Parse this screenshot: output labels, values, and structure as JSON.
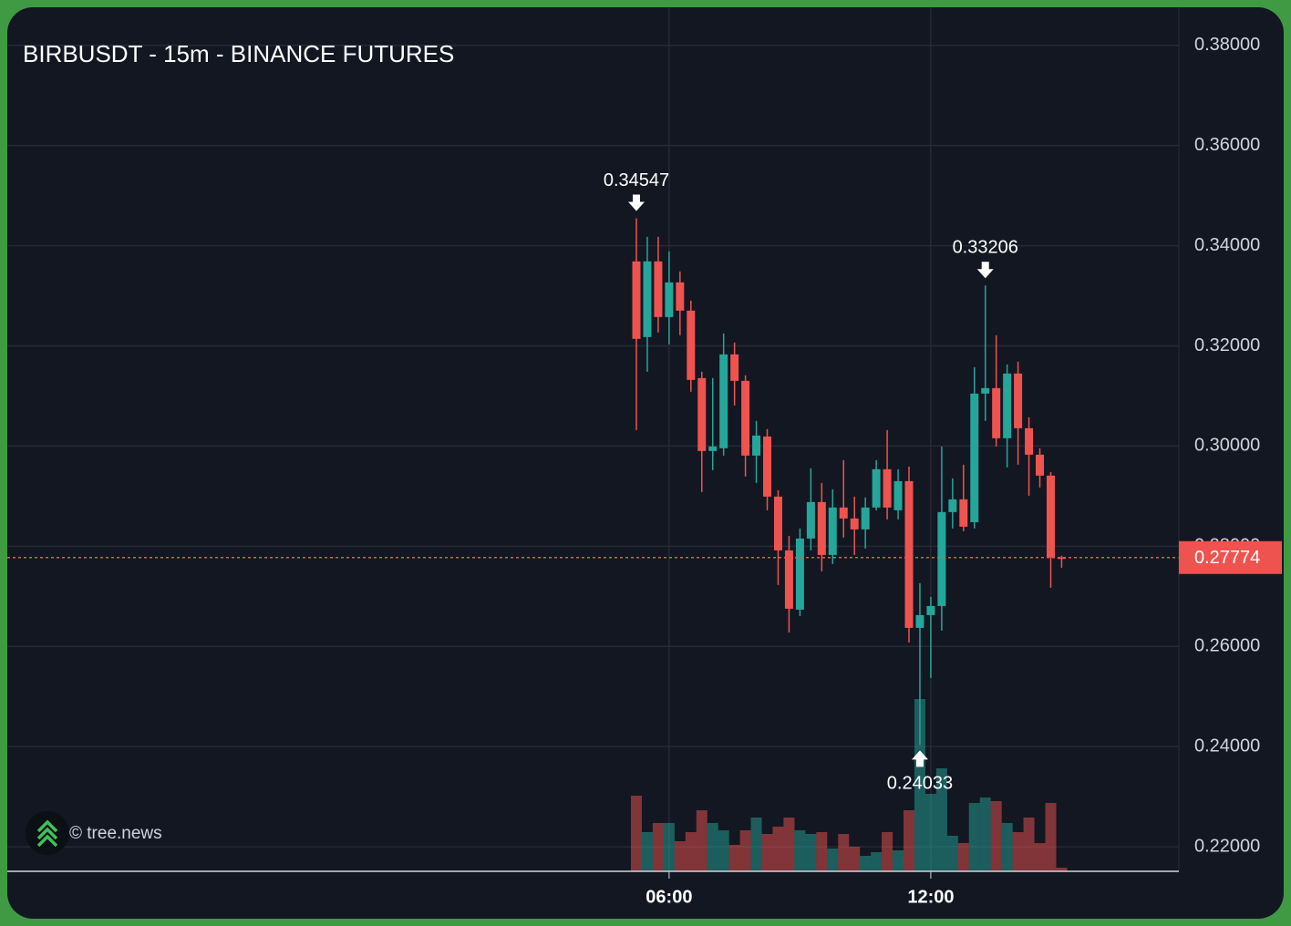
{
  "chart_data": {
    "type": "candlestick",
    "title": "BIRBUSDT - 15m - BINANCE FUTURES",
    "watermark": "© tree.news",
    "up_color": "#26a69a",
    "down_color": "#ef5350",
    "grid": true,
    "x": [
      "05:15",
      "05:30",
      "05:45",
      "06:00",
      "06:15",
      "06:30",
      "06:45",
      "07:00",
      "07:15",
      "07:30",
      "07:45",
      "08:00",
      "08:15",
      "08:30",
      "08:45",
      "09:00",
      "09:15",
      "09:30",
      "09:45",
      "10:00",
      "10:15",
      "10:30",
      "10:45",
      "11:00",
      "11:15",
      "11:30",
      "11:45",
      "12:00",
      "12:15",
      "12:30",
      "12:45",
      "13:00",
      "13:15",
      "13:30",
      "13:45",
      "14:00",
      "14:15",
      "14:30",
      "14:45",
      "15:00"
    ],
    "open": [
      0.33687,
      0.32176,
      0.33687,
      0.32576,
      0.33268,
      0.32704,
      0.31357,
      0.29901,
      0.29956,
      0.3183,
      0.31302,
      0.2981,
      0.30192,
      0.28991,
      0.27917,
      0.26734,
      0.28154,
      0.28882,
      0.27826,
      0.28773,
      0.28554,
      0.28336,
      0.28773,
      0.29537,
      0.28718,
      0.293,
      0.2637,
      0.26625,
      0.26807,
      0.28682,
      0.28936,
      0.28481,
      0.31048,
      0.31157,
      0.30156,
      0.31448,
      0.30356,
      0.29828,
      0.2941,
      0.27774
    ],
    "high": [
      0.34547,
      0.34178,
      0.34178,
      0.33887,
      0.33486,
      0.32904,
      0.31484,
      0.31357,
      0.32249,
      0.32067,
      0.31412,
      0.30502,
      0.30338,
      0.29118,
      0.28208,
      0.28354,
      0.29555,
      0.29264,
      0.29137,
      0.29719,
      0.28991,
      0.28973,
      0.29719,
      0.3032,
      0.29537,
      0.29592,
      0.27262,
      0.26989,
      0.29992,
      0.29355,
      0.29628,
      0.31575,
      0.33206,
      0.32212,
      0.3163,
      0.31685,
      0.30574,
      0.29956,
      0.29482,
      0.27808
    ],
    "low": [
      0.3032,
      0.31484,
      0.32267,
      0.3203,
      0.32212,
      0.31084,
      0.29082,
      0.29519,
      0.2981,
      0.30811,
      0.29391,
      0.29264,
      0.28718,
      0.27226,
      0.26279,
      0.26607,
      0.27917,
      0.27499,
      0.27644,
      0.28172,
      0.27826,
      0.27954,
      0.28718,
      0.28536,
      0.28536,
      0.26079,
      0.24033,
      0.25369,
      0.26316,
      0.28354,
      0.28299,
      0.28354,
      0.30502,
      0.29992,
      0.29573,
      0.29628,
      0.29009,
      0.29173,
      0.27171,
      0.27571
    ],
    "close": [
      0.3214,
      0.33687,
      0.32576,
      0.33268,
      0.32704,
      0.31321,
      0.29901,
      0.29992,
      0.3183,
      0.31302,
      0.2981,
      0.3021,
      0.28991,
      0.27917,
      0.26752,
      0.28154,
      0.28882,
      0.27826,
      0.28773,
      0.28554,
      0.28336,
      0.28773,
      0.29537,
      0.28773,
      0.293,
      0.2637,
      0.26625,
      0.26807,
      0.28682,
      0.28936,
      0.2839,
      0.31048,
      0.31157,
      0.30156,
      0.31448,
      0.30356,
      0.29828,
      0.2941,
      0.27774,
      0.27774
    ],
    "volume": [
      83,
      43,
      53,
      53,
      33,
      43,
      67,
      53,
      45,
      29,
      45,
      59,
      41,
      49,
      59,
      45,
      41,
      43,
      25,
      41,
      27,
      17,
      21,
      43,
      23,
      67,
      189,
      85,
      113,
      39,
      31,
      75,
      81,
      77,
      53,
      43,
      59,
      31,
      75,
      4
    ],
    "annotations": [
      {
        "x": "05:15",
        "position": "above"
      },
      {
        "x": "13:15",
        "position": "above"
      },
      {
        "x": "11:45",
        "position": "below"
      }
    ],
    "ylim": [
      0.2151,
      0.3876
    ],
    "yticks": [
      {
        "value": 0.22,
        "label": "0.22000"
      },
      {
        "value": 0.24,
        "label": "0.24000"
      },
      {
        "value": 0.26,
        "label": "0.26000"
      },
      {
        "value": 0.28,
        "label": "0.28000"
      },
      {
        "value": 0.3,
        "label": "0.30000"
      },
      {
        "value": 0.32,
        "label": "0.32000"
      },
      {
        "value": 0.34,
        "label": "0.34000"
      },
      {
        "value": 0.36,
        "label": "0.36000"
      },
      {
        "value": 0.38,
        "label": "0.38000"
      }
    ],
    "xticks": [
      "06:00",
      "12:00"
    ]
  }
}
